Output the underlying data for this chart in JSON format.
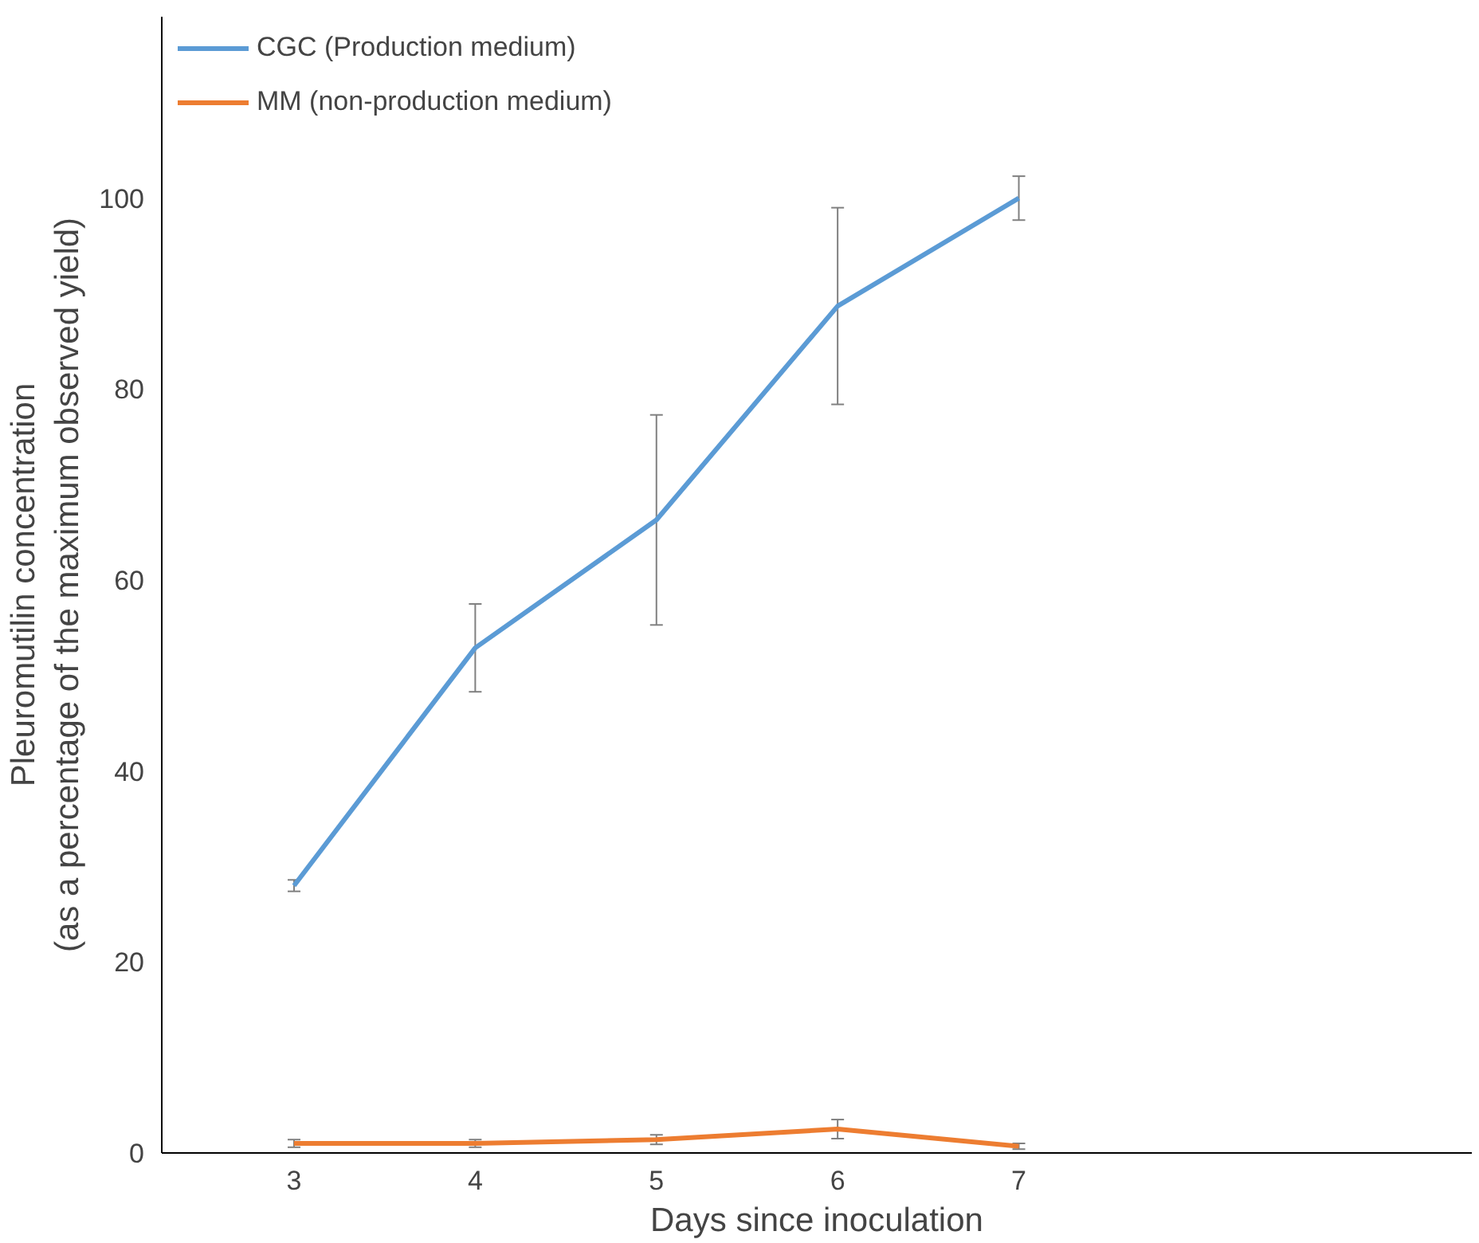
{
  "chart_data": {
    "type": "line",
    "xlabel": "Days since inoculation",
    "ylabel": "Pleuromutilin concentration\n(as a percentage of the maximum observed yield)",
    "x": [
      3,
      4,
      5,
      6,
      7
    ],
    "series": [
      {
        "name": "CGC (Production medium)",
        "color": "#5b9bd5",
        "values": [
          28,
          52.9,
          66.3,
          88.7,
          100
        ],
        "errors": [
          0.6,
          4.6,
          11,
          10.3,
          2.3
        ]
      },
      {
        "name": "MM (non-production medium)",
        "color": "#ed7d31",
        "values": [
          1.0,
          1.0,
          1.4,
          2.5,
          0.7
        ],
        "errors": [
          0.4,
          0.4,
          0.5,
          1.0,
          0.3
        ]
      }
    ],
    "xlim": [
      2.27,
      9.5
    ],
    "ylim": [
      0,
      119
    ],
    "xticks": [
      3,
      4,
      5,
      6,
      7
    ],
    "yticks": [
      0,
      20,
      40,
      60,
      80,
      100
    ],
    "grid": false,
    "legend": "top left",
    "marker": "none",
    "line_style": "solid"
  }
}
